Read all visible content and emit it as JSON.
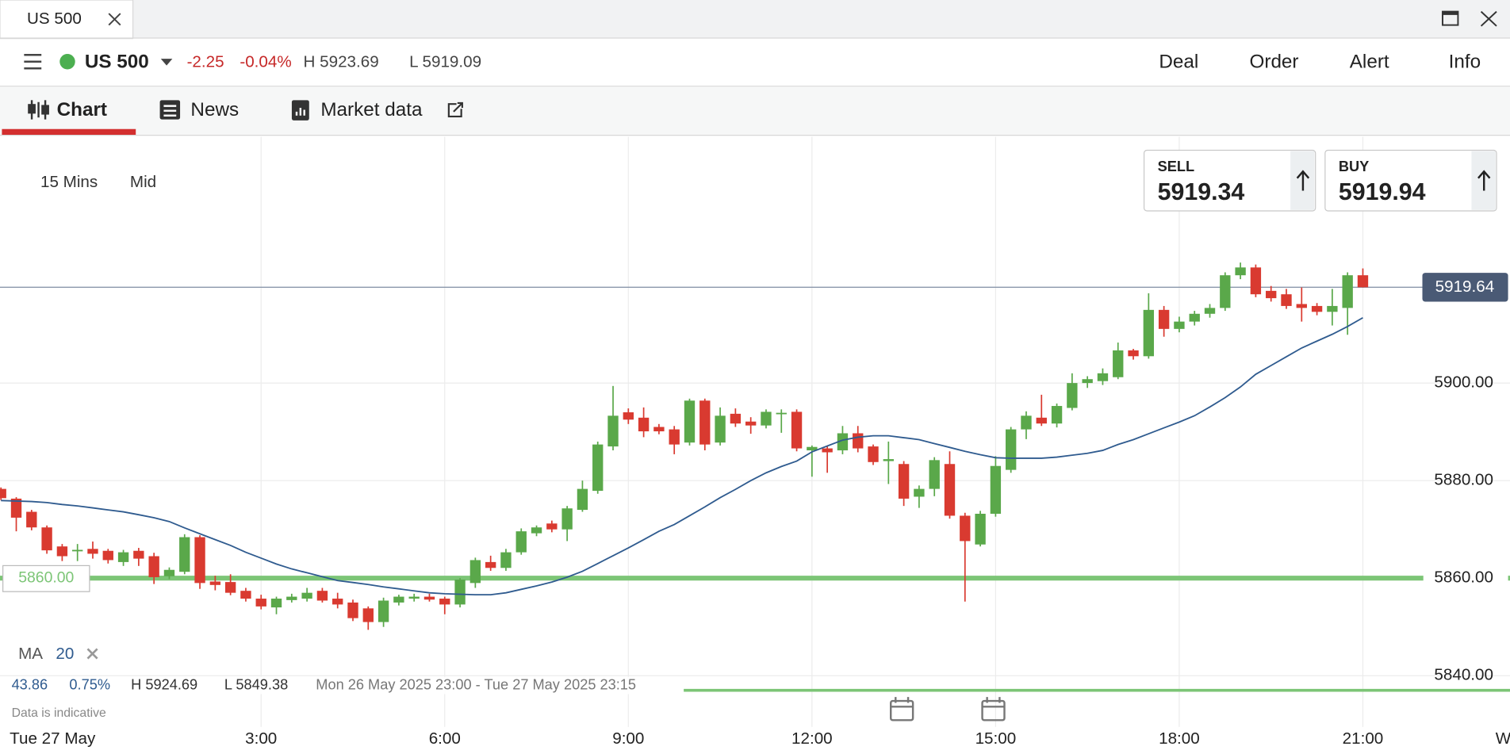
{
  "window_tab": "US 500",
  "header": {
    "instrument": "US 500",
    "change": "-2.25",
    "change_pct": "-0.04%",
    "high": "H 5923.69",
    "low": "L 5919.09",
    "actions": [
      "Deal",
      "Order",
      "Alert",
      "Info"
    ]
  },
  "tabs": [
    "Chart",
    "News",
    "Market data"
  ],
  "chart": {
    "type": "candlestick",
    "interval": "15 Mins",
    "price_type": "Mid",
    "date_label": "Tue 27 May",
    "next_date_label": "W",
    "categories": [
      null,
      null,
      null,
      null,
      null,
      null,
      null,
      null,
      null,
      null,
      null,
      null,
      null,
      null,
      null,
      null,
      null,
      "3:00",
      null,
      null,
      null,
      null,
      null,
      null,
      null,
      null,
      null,
      null,
      null,
      "6:00",
      null,
      null,
      null,
      null,
      null,
      null,
      null,
      null,
      null,
      null,
      null,
      "9:00",
      null,
      null,
      null,
      null,
      null,
      null,
      null,
      null,
      null,
      null,
      null,
      "12:00",
      null,
      null,
      null,
      null,
      null,
      null,
      null,
      null,
      null,
      null,
      null,
      "15:00",
      null,
      null,
      null,
      null,
      null,
      null,
      null,
      null,
      null,
      null,
      null,
      "18:00",
      null,
      null,
      null,
      null,
      null,
      null,
      null,
      null,
      null,
      null,
      null,
      "21:00"
    ],
    "open": [
      5878.3,
      5876.3,
      5873.6,
      5870.4,
      5866.5,
      5865.5,
      5866,
      5865.6,
      5863.3,
      5865.6,
      5864.5,
      5860.4,
      5861.3,
      5868.4,
      5859.3,
      5859.2,
      5857.4,
      5855.8,
      5854,
      5855.5,
      5855.8,
      5857.4,
      5855.8,
      5855,
      5853.8,
      5851,
      5855,
      5855.8,
      5856.2,
      5855.8,
      5854.6,
      5859,
      5863.3,
      5862.1,
      5865.3,
      5869.2,
      5871.2,
      5870,
      5874,
      5877.9,
      5887,
      5894,
      5892.9,
      5891,
      5890.5,
      5887.8,
      5896.4,
      5887.8,
      5893.7,
      5892.1,
      5891.3,
      5893.7,
      5894.1,
      5886.2,
      5886.6,
      5886.2,
      5889.7,
      5887,
      5884,
      5883.4,
      5876.7,
      5878.3,
      5883.4,
      5872.8,
      5866.9,
      5873.2,
      5882.2,
      5890.5,
      5892.9,
      5891.7,
      5894.9,
      5900,
      5900.4,
      5901.2,
      5906.7,
      5905.5,
      5915,
      5911.1,
      5912.6,
      5914.2,
      5915.4,
      5922.1,
      5923.7,
      5918.9,
      5918.2,
      5916.2,
      5915.8,
      5914.6,
      5915.4,
      5922.1
    ],
    "high": [
      5878.6,
      5876.6,
      5874,
      5870.8,
      5867,
      5867,
      5867.5,
      5866,
      5865.8,
      5866.2,
      5865.2,
      5862.2,
      5869,
      5868.8,
      5860.5,
      5860.8,
      5858,
      5856.6,
      5856.2,
      5856.8,
      5858,
      5858,
      5857,
      5855.6,
      5854.2,
      5856,
      5856.6,
      5856.8,
      5856.8,
      5856.2,
      5860,
      5864.2,
      5864.6,
      5866,
      5870.2,
      5870.8,
      5871.8,
      5874.8,
      5880,
      5888,
      5899.4,
      5894.8,
      5895,
      5891.6,
      5891.2,
      5896.8,
      5896.8,
      5895,
      5894.8,
      5893,
      5894.6,
      5894.6,
      5894.6,
      5887.2,
      5887,
      5891.2,
      5891.2,
      5887.4,
      5888,
      5884,
      5879,
      5884.8,
      5886,
      5873.4,
      5873.8,
      5885,
      5891,
      5894.2,
      5897.6,
      5895.8,
      5902,
      5901.4,
      5903,
      5908.3,
      5907,
      5918.4,
      5915.8,
      5913.6,
      5914.8,
      5916.2,
      5922.7,
      5924.7,
      5924.3,
      5919.9,
      5919.3,
      5919.6,
      5916.4,
      5919.3,
      5922.7,
      5923.5
    ],
    "low": [
      5876,
      5869.6,
      5869.8,
      5865,
      5863.5,
      5863.5,
      5864,
      5863,
      5862.5,
      5862.5,
      5858.8,
      5859.8,
      5860.8,
      5857.8,
      5857.5,
      5856.5,
      5855.2,
      5853.6,
      5852.6,
      5855,
      5855.2,
      5855,
      5853.8,
      5851.2,
      5849.4,
      5850,
      5854.4,
      5855.2,
      5855.2,
      5852.6,
      5854,
      5858,
      5861.5,
      5861.5,
      5864.8,
      5868.6,
      5869.4,
      5867.6,
      5873.6,
      5877.3,
      5886.2,
      5891.6,
      5888.9,
      5889.5,
      5885.4,
      5887.2,
      5886.2,
      5887.2,
      5891,
      5889.6,
      5890.7,
      5889.8,
      5886,
      5880.8,
      5881.6,
      5885.4,
      5885.8,
      5883.2,
      5879.3,
      5874.8,
      5874.4,
      5876.8,
      5872.2,
      5855.2,
      5866.5,
      5872.6,
      5881.6,
      5888.5,
      5891.2,
      5890.9,
      5894.4,
      5899,
      5899.6,
      5900.8,
      5904.8,
      5905,
      5909.5,
      5910.4,
      5911.8,
      5913.4,
      5914.8,
      5921.3,
      5917.6,
      5916.7,
      5915.2,
      5912.6,
      5913.9,
      5911.8,
      5909.9,
      5919.6
    ],
    "close": [
      5876.4,
      5872.4,
      5870.4,
      5865.7,
      5864.5,
      5865.8,
      5865,
      5863.7,
      5865.3,
      5864,
      5860.2,
      5861.7,
      5868.4,
      5859,
      5858.6,
      5857,
      5855.8,
      5854.2,
      5855.8,
      5856.2,
      5857,
      5855.4,
      5854.6,
      5851.8,
      5851,
      5855.4,
      5856.2,
      5856.2,
      5855.6,
      5854.6,
      5859.7,
      5863.7,
      5862.1,
      5865.3,
      5869.6,
      5870.4,
      5870,
      5874.3,
      5878.3,
      5887.4,
      5893.3,
      5892.5,
      5890.1,
      5890.1,
      5887.4,
      5896.4,
      5887.4,
      5893.3,
      5891.7,
      5891.3,
      5894.1,
      5893.9,
      5886.6,
      5886.9,
      5885.8,
      5889.7,
      5886.6,
      5883.8,
      5884.4,
      5876.3,
      5878.3,
      5884.2,
      5872.8,
      5867.6,
      5873.2,
      5883,
      5890.5,
      5893.3,
      5891.7,
      5895.3,
      5900,
      5900.8,
      5902,
      5906.7,
      5905.5,
      5915,
      5911.1,
      5912.6,
      5914.2,
      5915.4,
      5922.1,
      5923.7,
      5918.2,
      5917.4,
      5915.8,
      5915.4,
      5914.6,
      5915.8,
      5922.1,
      5919.64
    ],
    "up_color": "#5aa84a",
    "down_color": "#d93a30",
    "ma": {
      "label": "MA",
      "period": "20",
      "color": "#2f5b8f",
      "values": [
        5875.9,
        5875.8,
        5875.7,
        5875.5,
        5875.1,
        5874.8,
        5874.4,
        5874,
        5873.6,
        5873,
        5872.4,
        5871.6,
        5870.3,
        5869.1,
        5867.9,
        5866.7,
        5865.3,
        5864.1,
        5862.9,
        5861.9,
        5861.1,
        5860.3,
        5859.5,
        5859.1,
        5858.7,
        5858.2,
        5857.8,
        5857.4,
        5857,
        5856.8,
        5856.7,
        5856.6,
        5856.6,
        5857,
        5857.7,
        5858.4,
        5859.2,
        5860.2,
        5861.4,
        5863,
        5864.6,
        5866.2,
        5867.9,
        5869.6,
        5871,
        5872.8,
        5874.6,
        5876.5,
        5878.2,
        5880,
        5881.6,
        5882.9,
        5884,
        5885.9,
        5887.1,
        5888.3,
        5888.9,
        5889.2,
        5889.2,
        5888.8,
        5888.4,
        5887.6,
        5886.8,
        5886,
        5885.3,
        5884.7,
        5884.6,
        5884.6,
        5884.6,
        5884.8,
        5885.2,
        5885.6,
        5886.2,
        5887.4,
        5888.4,
        5889.6,
        5890.8,
        5892,
        5893.3,
        5895.1,
        5897,
        5899.2,
        5901.8,
        5903.6,
        5905.4,
        5907.2,
        5908.6,
        5910,
        5911.6,
        5913.4
      ]
    },
    "ylim": [
      5829.5,
      5950.5
    ],
    "yticks": [
      {
        "value": 5900,
        "label": "5900.00"
      },
      {
        "value": 5880,
        "label": "5880.00"
      },
      {
        "value": 5860,
        "label": "5860.00"
      },
      {
        "value": 5840,
        "label": "5840.00"
      }
    ],
    "current_price": {
      "value": 5919.64,
      "label": "5919.64"
    },
    "levels": [
      {
        "value": 5860,
        "label": "5860.00",
        "color": "#7cc576"
      },
      {
        "value": 5837,
        "color": "#7cc576"
      }
    ],
    "grid": true
  },
  "quote": {
    "sell_label": "SELL",
    "sell": "5919.34",
    "buy_label": "BUY",
    "buy": "5919.94"
  },
  "stats": {
    "range": "43.86",
    "range_pct": "0.75%",
    "high": "H 5924.69",
    "low": "L 5849.38",
    "period": "Mon 26 May 2025 23:00 - Tue 27 May 2025 23:15"
  },
  "footnote": "Data is indicative"
}
